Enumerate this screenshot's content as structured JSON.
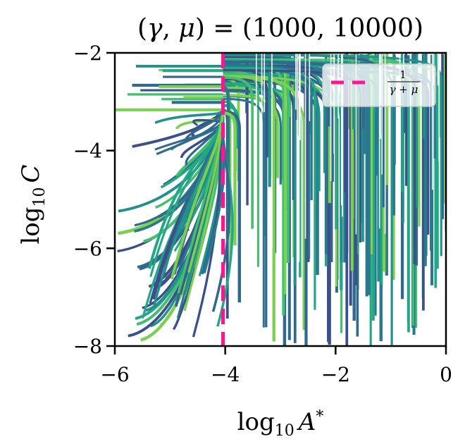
{
  "chart_data": {
    "type": "line",
    "title": "(γ, μ) = (1000, 10000)",
    "title_parts": {
      "open": "(",
      "gamma": "γ",
      "comma": ", ",
      "mu": "μ",
      "close": ") = (1000, 10000)"
    },
    "xlabel": {
      "log": "log",
      "sub": "10",
      "var": "A",
      "sup": "*"
    },
    "ylabel": {
      "log": "log",
      "sub": "10",
      "var": "C"
    },
    "xlim": [
      -6,
      0
    ],
    "ylim": [
      -8,
      -2
    ],
    "x_ticks": [
      -6,
      -4,
      -2,
      0
    ],
    "y_ticks": [
      -8,
      -6,
      -4,
      -2
    ],
    "x_tick_labels": [
      "−6",
      "−4",
      "−2",
      "0"
    ],
    "y_tick_labels": [
      "−8",
      "−6",
      "−4",
      "−2"
    ],
    "grid": false,
    "parameters": {
      "gamma": 1000,
      "mu": 10000
    },
    "reference_line": {
      "name": "1/(γ+μ)",
      "x": -4.04,
      "style": "dashed",
      "color": "#ff1493"
    },
    "legend": {
      "placement": "top-right",
      "entries": [
        {
          "label_num": "1",
          "label_den": "γ + μ",
          "style": "dashed",
          "color": "#ff1493"
        }
      ]
    },
    "trajectories": {
      "description_count": 220,
      "colormap": [
        "#3b4f8a",
        "#31688e",
        "#2a788e",
        "#21918c",
        "#22a884",
        "#44bf70",
        "#7ad151"
      ],
      "left_region_x_start_range": [
        -6,
        -4.05
      ],
      "right_region_x_start_range": [
        -4.0,
        0
      ],
      "attractor_x": -4.04
    }
  }
}
